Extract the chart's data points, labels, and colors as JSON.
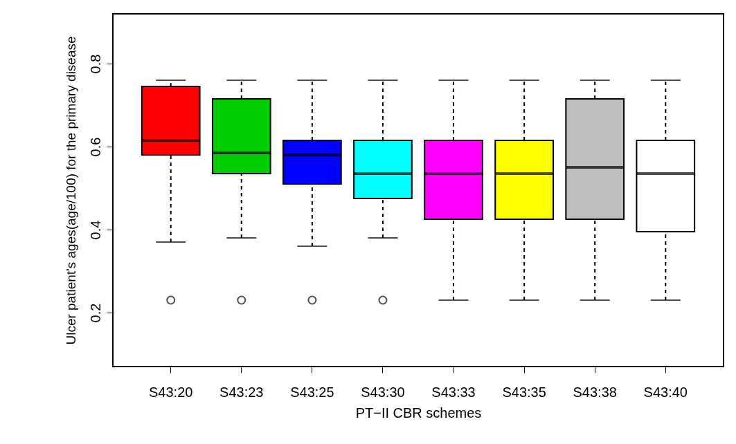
{
  "chart_data": {
    "type": "box",
    "xlabel": "PT−II CBR schemes",
    "ylabel": "Ulcer patient's ages(age/100) for the primary disease",
    "categories": [
      "S43:20",
      "S43:23",
      "S43:25",
      "S43:30",
      "S43:33",
      "S43:35",
      "S43:38",
      "S43:40"
    ],
    "colors": [
      "#ff0000",
      "#00cd00",
      "#0000ff",
      "#00ffff",
      "#ff00ff",
      "#ffff00",
      "#bebebe",
      "#ffffff"
    ],
    "boxes": [
      {
        "low": 0.37,
        "q1": 0.58,
        "median": 0.615,
        "q3": 0.745,
        "high": 0.76,
        "outliers": [
          0.23
        ]
      },
      {
        "low": 0.38,
        "q1": 0.535,
        "median": 0.585,
        "q3": 0.715,
        "high": 0.76,
        "outliers": [
          0.23
        ]
      },
      {
        "low": 0.36,
        "q1": 0.51,
        "median": 0.58,
        "q3": 0.615,
        "high": 0.76,
        "outliers": [
          0.23
        ]
      },
      {
        "low": 0.38,
        "q1": 0.475,
        "median": 0.535,
        "q3": 0.615,
        "high": 0.76,
        "outliers": [
          0.23
        ]
      },
      {
        "low": 0.23,
        "q1": 0.425,
        "median": 0.535,
        "q3": 0.615,
        "high": 0.76
      },
      {
        "low": 0.23,
        "q1": 0.425,
        "median": 0.535,
        "q3": 0.615,
        "high": 0.76
      },
      {
        "low": 0.23,
        "q1": 0.425,
        "median": 0.55,
        "q3": 0.715,
        "high": 0.76
      },
      {
        "low": 0.23,
        "q1": 0.395,
        "median": 0.535,
        "q3": 0.615,
        "high": 0.76
      }
    ],
    "ylim": [
      0.07,
      0.92
    ],
    "yticks": [
      0.2,
      0.4,
      0.6,
      0.8
    ]
  }
}
